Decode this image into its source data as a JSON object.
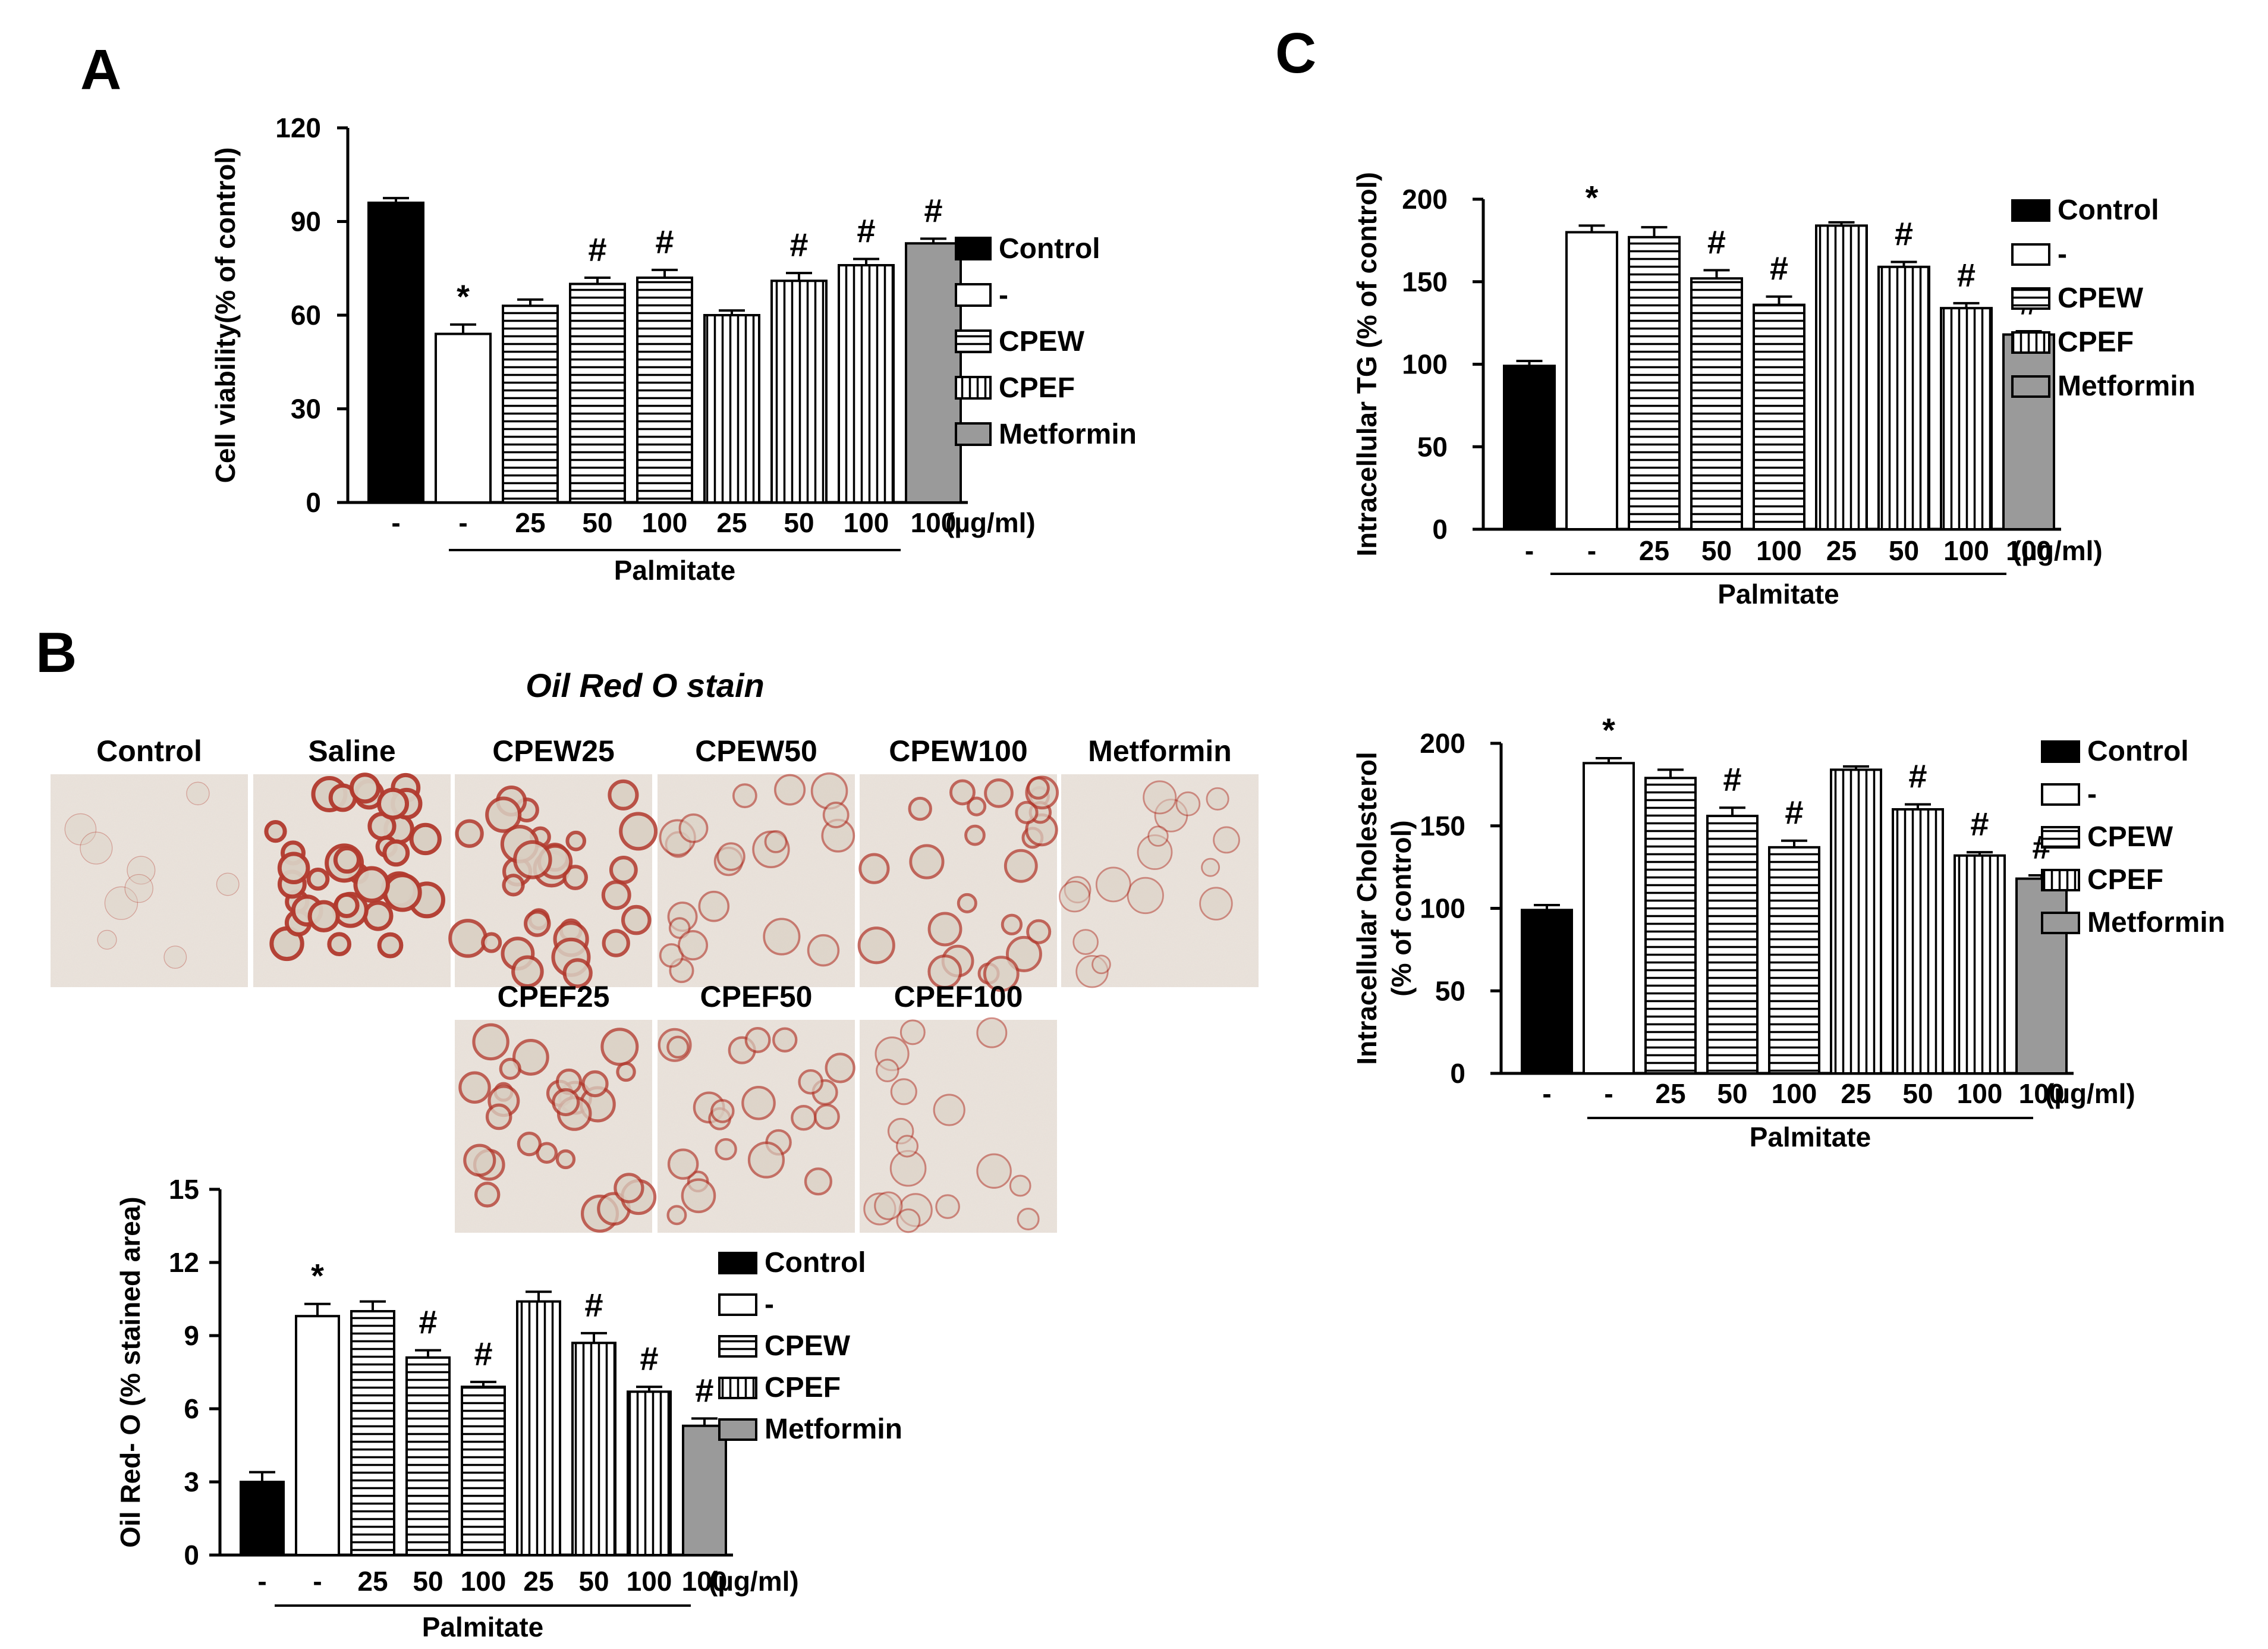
{
  "colors": {
    "control": "#000000",
    "palm": "#ffffff",
    "cpew": "#ffffff",
    "cpef": "#ffffff",
    "metformin": "#9a9a9a",
    "stroke": "#000000"
  },
  "legend": [
    "Control",
    "-",
    "CPEW",
    "CPEF",
    "Metformin"
  ],
  "unit_label": "(µg/ml)",
  "group_label": "Palmitate",
  "categories": [
    "-",
    "-",
    "25",
    "50",
    "100",
    "25",
    "50",
    "100",
    "100"
  ],
  "bar_groups": [
    "control",
    "palm",
    "cpew",
    "cpew",
    "cpew",
    "cpef",
    "cpef",
    "cpef",
    "metformin"
  ],
  "panels": {
    "a": "A",
    "b": "B",
    "c": "C"
  },
  "micrographs": {
    "title": "Oil Red O stain",
    "top_row": [
      "Control",
      "Saline",
      "CPEW25",
      "CPEW50",
      "CPEW100",
      "Metformin"
    ],
    "bottom_row": [
      "CPEF25",
      "CPEF50",
      "CPEF100"
    ]
  },
  "chart_data": [
    {
      "id": "viability",
      "type": "bar",
      "ylabel": "Cell viability(% of control)",
      "ylim": [
        0,
        120
      ],
      "yticks": [
        0,
        30,
        60,
        90,
        120
      ],
      "values": [
        96,
        54,
        63,
        70,
        72,
        60,
        71,
        76,
        83
      ],
      "errors": [
        1.5,
        3,
        2,
        2,
        2.5,
        1.5,
        2.5,
        2,
        1.5
      ],
      "marks": [
        "",
        "*",
        "",
        "#",
        "#",
        "",
        "#",
        "#",
        "#"
      ]
    },
    {
      "id": "oilredo",
      "type": "bar",
      "ylabel": "Oil Red- O (% stained area)",
      "ylim": [
        0,
        15
      ],
      "yticks": [
        0,
        3,
        6,
        9,
        12,
        15
      ],
      "values": [
        3.0,
        9.8,
        10.0,
        8.1,
        6.9,
        10.4,
        8.7,
        6.7,
        5.3
      ],
      "errors": [
        0.4,
        0.5,
        0.4,
        0.3,
        0.2,
        0.4,
        0.4,
        0.2,
        0.3
      ],
      "marks": [
        "",
        "*",
        "",
        "#",
        "#",
        "",
        "#",
        "#",
        "#"
      ]
    },
    {
      "id": "tg",
      "type": "bar",
      "ylabel": "Intracellular TG (% of control)",
      "ylim": [
        0,
        200
      ],
      "yticks": [
        0,
        50,
        100,
        150,
        200
      ],
      "values": [
        99,
        180,
        177,
        152,
        136,
        184,
        159,
        134,
        118
      ],
      "errors": [
        3,
        4,
        6,
        5,
        5,
        2,
        3,
        3,
        2
      ],
      "marks": [
        "",
        "*",
        "",
        "#",
        "#",
        "",
        "#",
        "#",
        "#"
      ]
    },
    {
      "id": "chol",
      "type": "bar",
      "ylabel": [
        "Intracellular Cholesterol",
        "(% of control)"
      ],
      "ylim": [
        0,
        200
      ],
      "yticks": [
        0,
        50,
        100,
        150,
        200
      ],
      "values": [
        99,
        188,
        179,
        156,
        137,
        184,
        160,
        132,
        118
      ],
      "errors": [
        3,
        3,
        5,
        5,
        4,
        2,
        3,
        2,
        2
      ],
      "marks": [
        "",
        "*",
        "",
        "#",
        "#",
        "",
        "#",
        "#",
        "#"
      ]
    }
  ]
}
